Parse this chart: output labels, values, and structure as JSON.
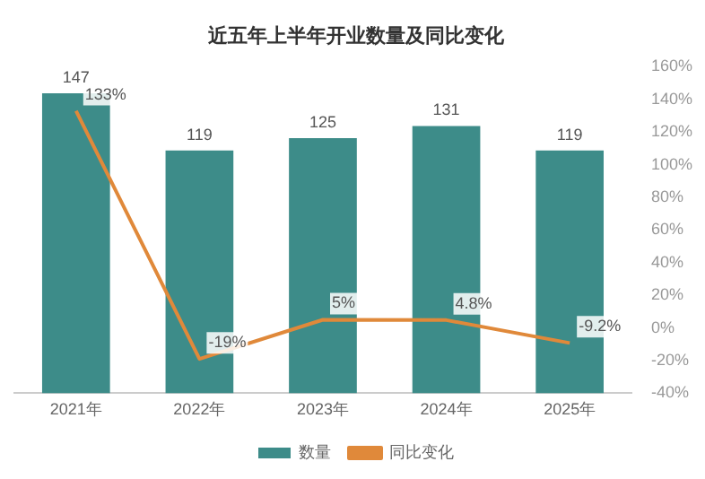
{
  "chart_data": {
    "type": "bar",
    "title": "近五年上半年开业数量及同比变化",
    "categories": [
      "2021年",
      "2022年",
      "2023年",
      "2024年",
      "2025年"
    ],
    "series": [
      {
        "name": "数量",
        "color": "#3d8c89",
        "values": [
          147,
          119,
          125,
          131,
          119
        ],
        "value_labels": [
          "147",
          "119",
          "125",
          "131",
          "119"
        ]
      },
      {
        "name": "同比变化",
        "type": "line",
        "axis": "y2",
        "color": "#e0893a",
        "values": [
          133,
          -19,
          5,
          4.8,
          -9.2
        ],
        "value_labels": [
          "133%",
          "-19%",
          "5%",
          "4.8%",
          "-9.2%"
        ]
      }
    ],
    "y2lim": [
      -40,
      160
    ],
    "y2ticks": [
      {
        "value": -40,
        "label": "-40%"
      },
      {
        "value": -20,
        "label": "-20%"
      },
      {
        "value": 0,
        "label": "0%"
      },
      {
        "value": 20,
        "label": "20%"
      },
      {
        "value": 40,
        "label": "40%"
      },
      {
        "value": 60,
        "label": "60%"
      },
      {
        "value": 80,
        "label": "80%"
      },
      {
        "value": 100,
        "label": "100%"
      },
      {
        "value": 120,
        "label": "120%"
      },
      {
        "value": 140,
        "label": "140%"
      },
      {
        "value": 160,
        "label": "160%"
      }
    ],
    "grid": false,
    "legend": "bottom",
    "marker": "none",
    "line_style": "solid"
  }
}
